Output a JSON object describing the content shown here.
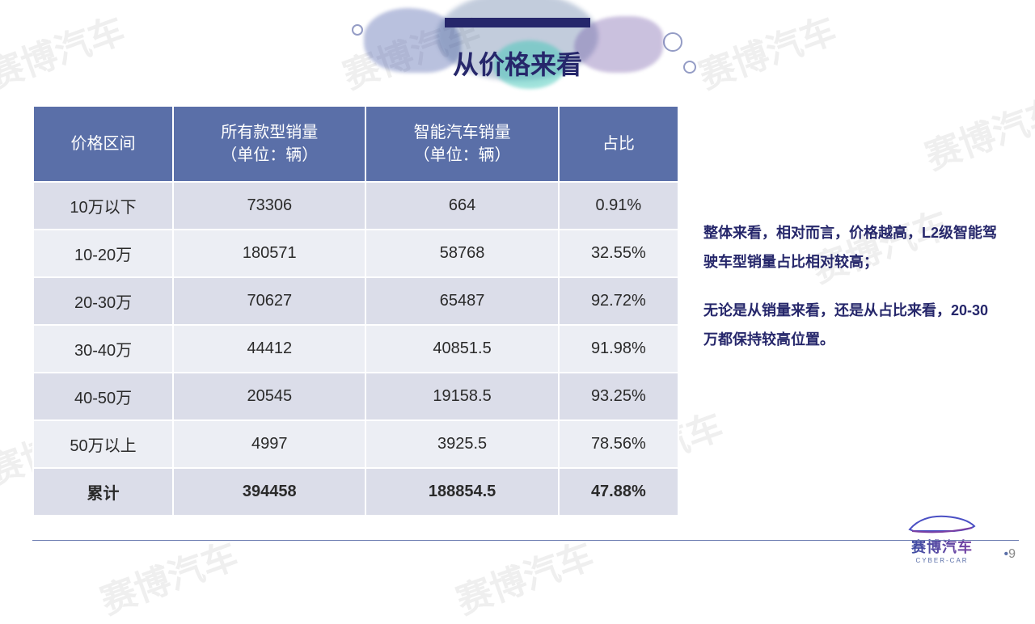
{
  "title": "从价格来看",
  "table": {
    "columns": [
      "价格区间",
      "所有款型销量\n（单位：辆）",
      "智能汽车销量\n（单位：辆）",
      "占比"
    ],
    "rows": [
      [
        "10万以下",
        "73306",
        "664",
        "0.91%"
      ],
      [
        "10-20万",
        "180571",
        "58768",
        "32.55%"
      ],
      [
        "20-30万",
        "70627",
        "65487",
        "92.72%"
      ],
      [
        "30-40万",
        "44412",
        "40851.5",
        "91.98%"
      ],
      [
        "40-50万",
        "20545",
        "19158.5",
        "93.25%"
      ],
      [
        "50万以上",
        "4997",
        "3925.5",
        "78.56%"
      ],
      [
        "累计",
        "394458",
        "188854.5",
        "47.88%"
      ]
    ],
    "header_bg": "#5a6fa8",
    "header_color": "#ffffff",
    "row_odd_bg": "#dbdde9",
    "row_even_bg": "#eceef4",
    "font_size": 20
  },
  "side_paragraphs": [
    "整体来看，相对而言，价格越高，L2级智能驾驶车型销量占比相对较高；",
    "无论是从销量来看，还是从占比来看，20-30万都保持较高位置。"
  ],
  "side_text_color": "#26276b",
  "page_number": "9",
  "logo": {
    "name": "赛博汽车",
    "sub": "CYBER-CAR"
  },
  "watermark_text": "赛博汽车",
  "colors": {
    "title": "#26276b",
    "accent_bar": "#26276b",
    "footer_line": "#6b7bb0"
  }
}
